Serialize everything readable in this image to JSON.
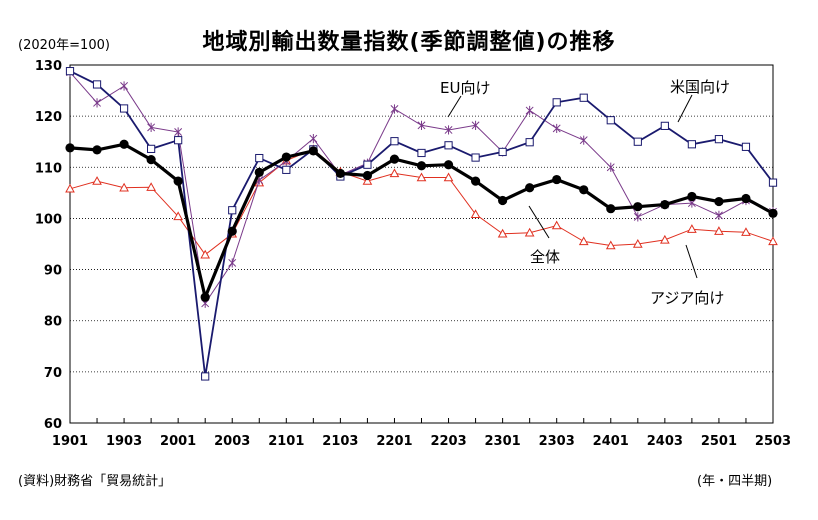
{
  "header": {
    "title": "地域別輸出数量指数(季節調整値)の推移",
    "unit": "(2020年=100)",
    "source": "(資料)財務省「貿易統計」",
    "period_label": "(年・四半期)"
  },
  "chart_data": {
    "type": "line",
    "title": "地域別輸出数量指数(季節調整値)の推移",
    "xlabel": "(年・四半期)",
    "ylabel": "(2020年=100)",
    "ylim": [
      60,
      130
    ],
    "yticks": [
      60,
      70,
      80,
      90,
      100,
      110,
      120,
      130
    ],
    "grid": true,
    "x": [
      "1901",
      "1902",
      "1903",
      "1904",
      "2001",
      "2002",
      "2003",
      "2004",
      "2101",
      "2102",
      "2103",
      "2104",
      "2201",
      "2202",
      "2203",
      "2204",
      "2301",
      "2302",
      "2303",
      "2304",
      "2401",
      "2402",
      "2403",
      "2404",
      "2501",
      "2502",
      "2503"
    ],
    "x_tick_labels": [
      "1901",
      "1903",
      "2001",
      "2003",
      "2101",
      "2103",
      "2201",
      "2203",
      "2301",
      "2303",
      "2401",
      "2403",
      "2501",
      "2503"
    ],
    "series": [
      {
        "name": "全体",
        "color": "#000000",
        "marker": "dot",
        "values": [
          113.8,
          113.4,
          114.5,
          111.5,
          107.3,
          84.6,
          97.5,
          109.0,
          112.0,
          113.2,
          108.8,
          108.4,
          111.6,
          110.3,
          110.5,
          107.3,
          103.5,
          106.0,
          107.6,
          105.6,
          101.9,
          102.3,
          102.7,
          104.3,
          103.3,
          103.9,
          101.0
        ]
      },
      {
        "name": "米国向け",
        "color": "#1a1a6e",
        "marker": "square",
        "values": [
          128.8,
          126.2,
          121.5,
          113.6,
          115.3,
          69.1,
          101.6,
          111.8,
          109.5,
          113.5,
          108.2,
          110.5,
          115.1,
          112.8,
          114.3,
          111.9,
          113.0,
          114.9,
          122.7,
          123.6,
          119.2,
          115.0,
          118.1,
          114.5,
          115.5,
          114.0,
          107.0
        ]
      },
      {
        "name": "EU向け",
        "color": "#7a3a8a",
        "marker": "x",
        "values": [
          128.6,
          122.6,
          125.9,
          117.8,
          116.9,
          83.4,
          91.3,
          107.5,
          111.2,
          115.6,
          108.5,
          110.8,
          121.4,
          118.2,
          117.3,
          118.2,
          113.0,
          121.1,
          117.6,
          115.3,
          110.0,
          100.3,
          102.7,
          103.0,
          100.6,
          103.5,
          101.3
        ]
      },
      {
        "name": "アジア向け",
        "color": "#e03020",
        "marker": "triangle",
        "values": [
          105.8,
          107.3,
          106.0,
          106.1,
          100.4,
          92.9,
          97.0,
          107.0,
          111.3,
          113.5,
          109.1,
          107.3,
          108.8,
          108.0,
          108.0,
          100.8,
          97.0,
          97.2,
          98.6,
          95.5,
          94.7,
          95.0,
          95.8,
          97.9,
          97.5,
          97.3,
          95.5
        ]
      }
    ]
  }
}
